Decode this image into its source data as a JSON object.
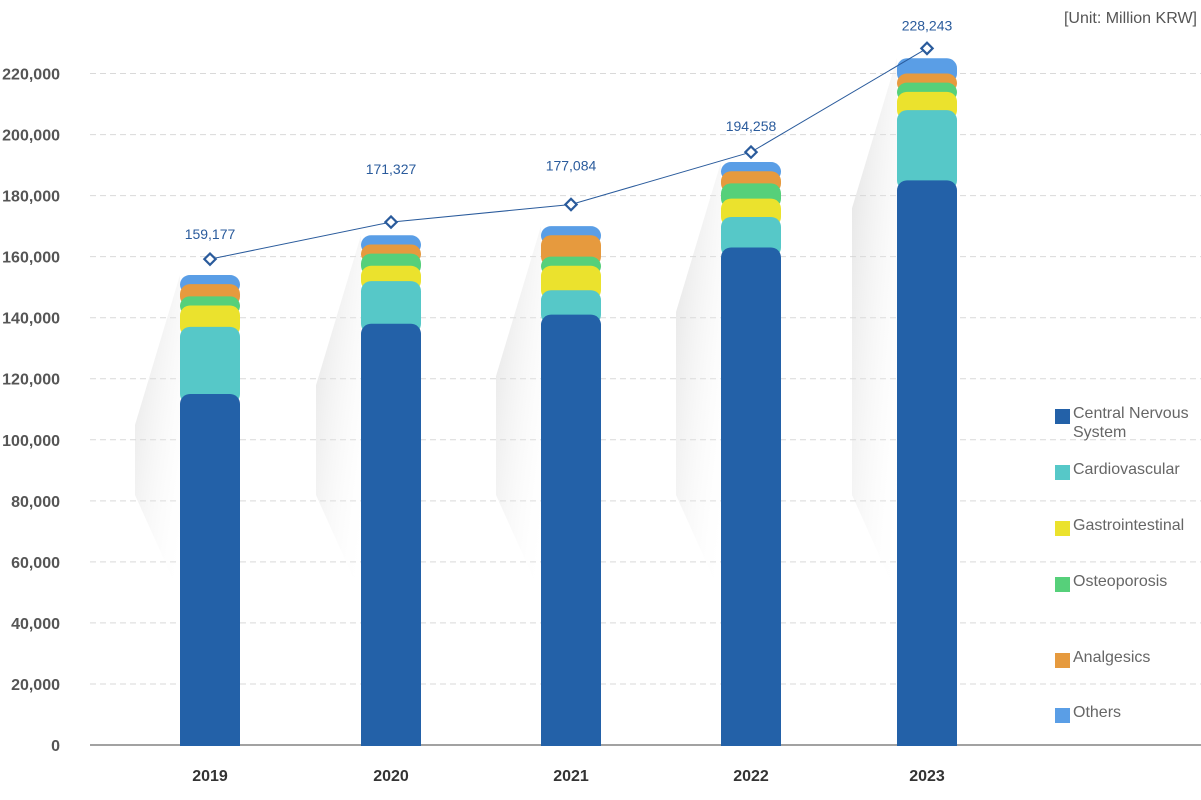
{
  "chart_data": {
    "type": "bar",
    "stacked": true,
    "unit": "[Unit: Million KRW]",
    "categories": [
      "2019",
      "2020",
      "2021",
      "2022",
      "2023"
    ],
    "ylim": [
      0,
      230000
    ],
    "yticks": [
      0,
      20000,
      40000,
      60000,
      80000,
      100000,
      120000,
      140000,
      160000,
      180000,
      200000,
      220000
    ],
    "ytick_labels": [
      "0",
      "20,000",
      "40,000",
      "60,000",
      "80,000",
      "100,000",
      "120,000",
      "140,000",
      "160,000",
      "180,000",
      "200,000",
      "220,000"
    ],
    "grid": true,
    "legend_position": "right",
    "series": [
      {
        "name": "Central Nervous System",
        "legend_lines": [
          "Central Nervous",
          "System"
        ],
        "color": "#2361a8",
        "values": [
          115000,
          138000,
          141000,
          163000,
          185000
        ]
      },
      {
        "name": "Cardiovascular",
        "legend_lines": [
          "Cardiovascular"
        ],
        "color": "#56c8c8",
        "values": [
          22000,
          14000,
          8000,
          10000,
          23000
        ]
      },
      {
        "name": "Gastrointestinal",
        "legend_lines": [
          "Gastrointestinal"
        ],
        "color": "#ebe22d",
        "values": [
          7000,
          5000,
          8000,
          6000,
          6000
        ]
      },
      {
        "name": "Osteoporosis",
        "legend_lines": [
          "Osteoporosis"
        ],
        "color": "#56d07a",
        "values": [
          3000,
          4000,
          3000,
          5000,
          3000
        ]
      },
      {
        "name": "Analgesics",
        "legend_lines": [
          "Analgesics"
        ],
        "color": "#e69a3e",
        "values": [
          4000,
          3000,
          7000,
          4000,
          3000
        ]
      },
      {
        "name": "Others",
        "legend_lines": [
          "Others"
        ],
        "color": "#5a9ee6",
        "values": [
          3000,
          3000,
          3000,
          3000,
          5000
        ]
      }
    ],
    "line_series": {
      "color": "#2a5b9c",
      "values": [
        159177,
        171327,
        177084,
        194258,
        228243
      ],
      "labels": [
        "159,177",
        "171,327",
        "177,084",
        "194,258",
        "228,243"
      ]
    }
  }
}
